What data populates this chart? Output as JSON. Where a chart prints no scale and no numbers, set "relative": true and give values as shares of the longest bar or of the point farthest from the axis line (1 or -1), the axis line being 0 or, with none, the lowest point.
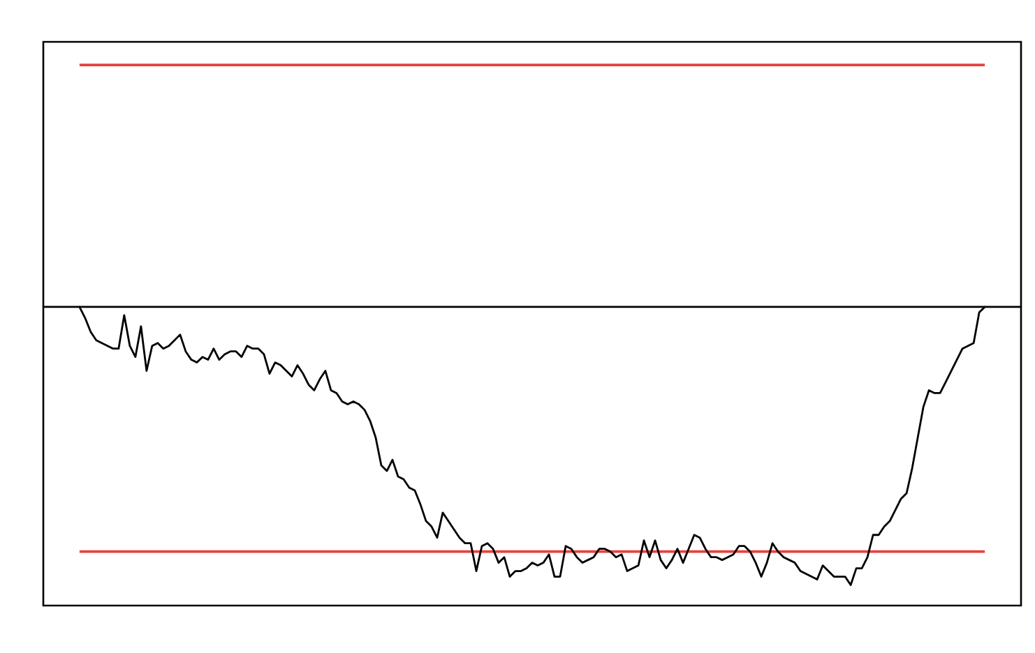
{
  "chart_data": {
    "type": "line",
    "relative": true,
    "tick_labels": false,
    "categories": [
      null,
      null,
      null,
      null,
      null,
      null,
      null,
      null,
      null,
      null,
      null,
      null,
      null,
      null,
      null,
      null,
      null,
      null,
      null,
      null,
      null,
      null,
      null,
      null,
      null,
      null,
      null,
      null,
      null,
      null,
      null,
      null,
      null,
      null,
      null,
      null,
      null,
      null,
      null,
      null,
      null,
      null,
      null,
      null,
      null,
      null,
      null,
      null,
      null,
      null,
      null,
      null,
      null,
      null,
      null,
      null,
      null,
      null,
      null,
      null,
      null,
      null,
      null,
      null,
      null,
      null,
      null,
      null,
      null,
      null,
      null,
      null,
      null,
      null,
      null,
      null,
      null,
      null,
      null,
      null,
      null,
      null,
      null,
      null,
      null,
      null,
      null,
      null,
      null,
      null,
      null,
      null,
      null,
      null,
      null,
      null,
      null,
      null,
      null,
      null,
      null,
      null,
      null,
      null,
      null,
      null,
      null,
      null,
      null,
      null,
      null,
      null,
      null,
      null,
      null,
      null,
      null,
      null,
      null,
      null,
      null,
      null,
      null,
      null,
      null,
      null,
      null,
      null,
      null,
      null,
      null,
      null,
      null,
      null,
      null,
      null,
      null,
      null,
      null,
      null,
      null,
      null,
      null,
      null,
      null,
      null,
      null,
      null,
      null,
      null,
      null,
      null,
      null,
      null,
      null,
      null,
      null,
      null,
      null,
      null,
      null,
      null,
      null
    ],
    "series": [
      {
        "color": "#000000",
        "values": [
          0,
          -0.04,
          -0.09,
          -0.12,
          -0.13,
          -0.14,
          -0.15,
          -0.15,
          -0.03,
          -0.14,
          -0.18,
          -0.07,
          -0.23,
          -0.14,
          -0.13,
          -0.15,
          -0.14,
          -0.12,
          -0.1,
          -0.16,
          -0.19,
          -0.2,
          -0.18,
          -0.19,
          -0.15,
          -0.19,
          -0.17,
          -0.16,
          -0.16,
          -0.18,
          -0.14,
          -0.15,
          -0.15,
          -0.17,
          -0.24,
          -0.2,
          -0.21,
          -0.23,
          -0.25,
          -0.21,
          -0.24,
          -0.28,
          -0.3,
          -0.26,
          -0.23,
          -0.3,
          -0.31,
          -0.34,
          -0.35,
          -0.34,
          -0.35,
          -0.37,
          -0.41,
          -0.47,
          -0.57,
          -0.59,
          -0.55,
          -0.61,
          -0.62,
          -0.65,
          -0.66,
          -0.71,
          -0.77,
          -0.79,
          -0.83,
          -0.74,
          -0.77,
          -0.8,
          -0.83,
          -0.85,
          -0.85,
          -0.95,
          -0.86,
          -0.85,
          -0.87,
          -0.92,
          -0.9,
          -0.97,
          -0.95,
          -0.95,
          -0.94,
          -0.92,
          -0.93,
          -0.92,
          -0.89,
          -0.97,
          -0.97,
          -0.86,
          -0.87,
          -0.9,
          -0.92,
          -0.91,
          -0.9,
          -0.87,
          -0.87,
          -0.88,
          -0.9,
          -0.89,
          -0.95,
          -0.94,
          -0.93,
          -0.84,
          -0.9,
          -0.84,
          -0.91,
          -0.94,
          -0.91,
          -0.87,
          -0.92,
          -0.87,
          -0.82,
          -0.83,
          -0.87,
          -0.9,
          -0.9,
          -0.91,
          -0.9,
          -0.89,
          -0.86,
          -0.86,
          -0.88,
          -0.92,
          -0.97,
          -0.92,
          -0.85,
          -0.88,
          -0.9,
          -0.91,
          -0.92,
          -0.95,
          -0.96,
          -0.97,
          -0.98,
          -0.93,
          -0.95,
          -0.97,
          -0.97,
          -0.97,
          -1,
          -0.94,
          -0.94,
          -0.9,
          -0.82,
          -0.82,
          -0.79,
          -0.77,
          -0.73,
          -0.69,
          -0.67,
          -0.58,
          -0.47,
          -0.36,
          -0.3,
          -0.31,
          -0.31,
          -0.27,
          -0.23,
          -0.19,
          -0.15,
          -0.14,
          -0.13,
          -0.02,
          0
        ]
      }
    ],
    "ref_lines": [
      {
        "axis": "y",
        "value": 0.87,
        "color": "#e8413c"
      },
      {
        "axis": "y",
        "value": -0.88,
        "color": "#e8413c"
      }
    ]
  }
}
